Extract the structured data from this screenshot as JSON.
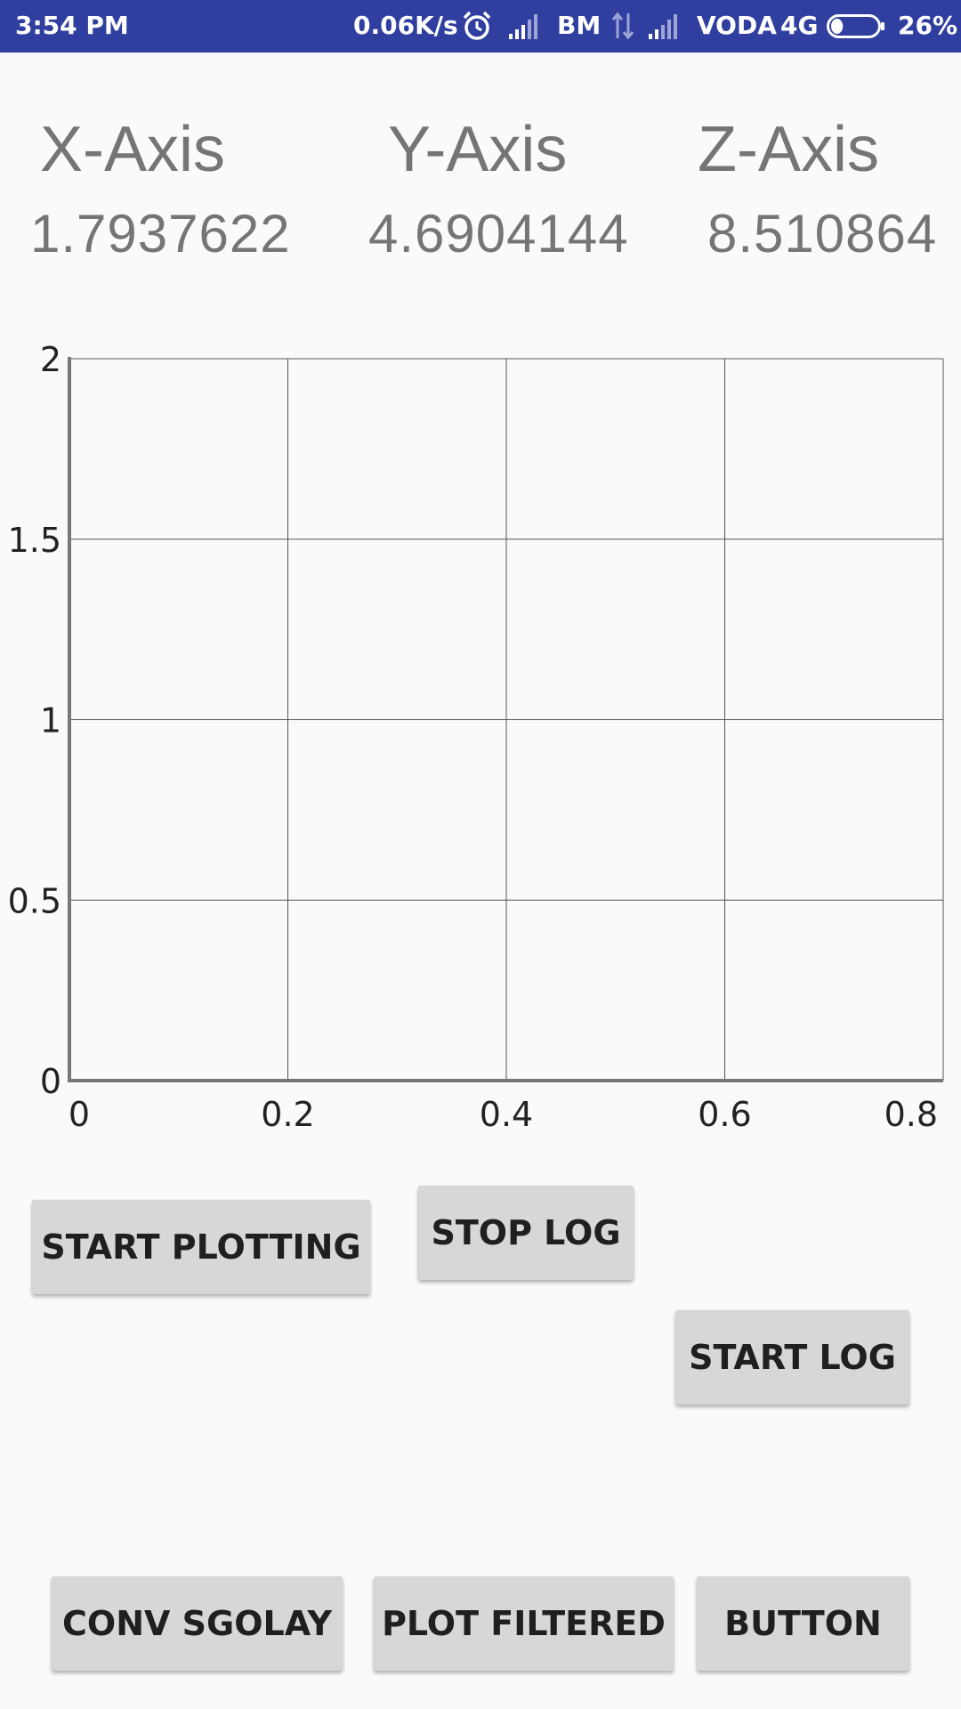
{
  "colors": {
    "status_bar": "#303f9f",
    "button_bg": "#d6d7d7",
    "axis_text": "#757575"
  },
  "status_bar": {
    "time": "3:54 PM",
    "net_speed": "0.06K/s",
    "carrier1": "BM",
    "carrier2": "VODA",
    "network_type": "4G",
    "battery_percent": "26%",
    "battery_level": 0.26
  },
  "readings": {
    "x_label": "X-Axis",
    "y_label": "Y-Axis",
    "z_label": "Z-Axis",
    "x_value": "1.7937622",
    "y_value": "4.6904144",
    "z_value": "8.510864"
  },
  "chart_data": {
    "type": "line",
    "title": "",
    "xlabel": "",
    "ylabel": "",
    "xlim": [
      0,
      0.8
    ],
    "ylim": [
      0,
      2
    ],
    "x_ticks": [
      "0",
      "0.2",
      "0.4",
      "0.6",
      "0.8"
    ],
    "y_ticks": [
      "0",
      "0.5",
      "1",
      "1.5",
      "2"
    ],
    "y_tick_values": [
      0,
      0.5,
      1,
      1.5,
      2
    ],
    "x_tick_values": [
      0,
      0.2,
      0.4,
      0.6,
      0.8
    ],
    "grid": true,
    "series": []
  },
  "buttons": {
    "start_plotting": "START PLOTTING",
    "stop_log": "STOP LOG",
    "start_log": "START LOG",
    "conv_sgolay": "CONV SGOLAY",
    "plot_filtered": "PLOT FILTERED",
    "button": "BUTTON"
  }
}
